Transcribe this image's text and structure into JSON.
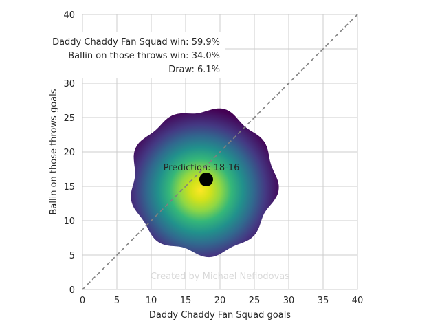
{
  "chart_data": {
    "type": "heatmap",
    "xlabel": "Daddy Chaddy Fan Squad goals",
    "ylabel": "Ballin on those throws goals",
    "xlim": [
      0,
      40
    ],
    "ylim": [
      0,
      40
    ],
    "xticks": [
      "0",
      "5",
      "10",
      "15",
      "20",
      "25",
      "30",
      "35",
      "40"
    ],
    "yticks": [
      "0",
      "5",
      "10",
      "15",
      "20",
      "25",
      "30",
      "35",
      "40"
    ],
    "grid": true,
    "density_center": [
      17.5,
      15
    ],
    "density_extent": [
      6.5,
      27.5
    ],
    "colormap": "viridis",
    "prediction_point": {
      "x": 18,
      "y": 16
    },
    "prediction_label": "Prediction: 18-16",
    "diagonal_line": {
      "from": [
        0,
        0
      ],
      "to": [
        40,
        40
      ],
      "style": "dashed",
      "color": "#808080"
    },
    "probabilities": [
      {
        "label": "Daddy Chaddy Fan Squad win: 59.9%",
        "value": 59.9
      },
      {
        "label": "Ballin on those throws win: 34.0%",
        "value": 34.0
      },
      {
        "label": "Draw: 6.1%",
        "value": 6.1
      }
    ],
    "legend_placement": "top-left",
    "credit": "Created by Michael Nefiodovas"
  }
}
